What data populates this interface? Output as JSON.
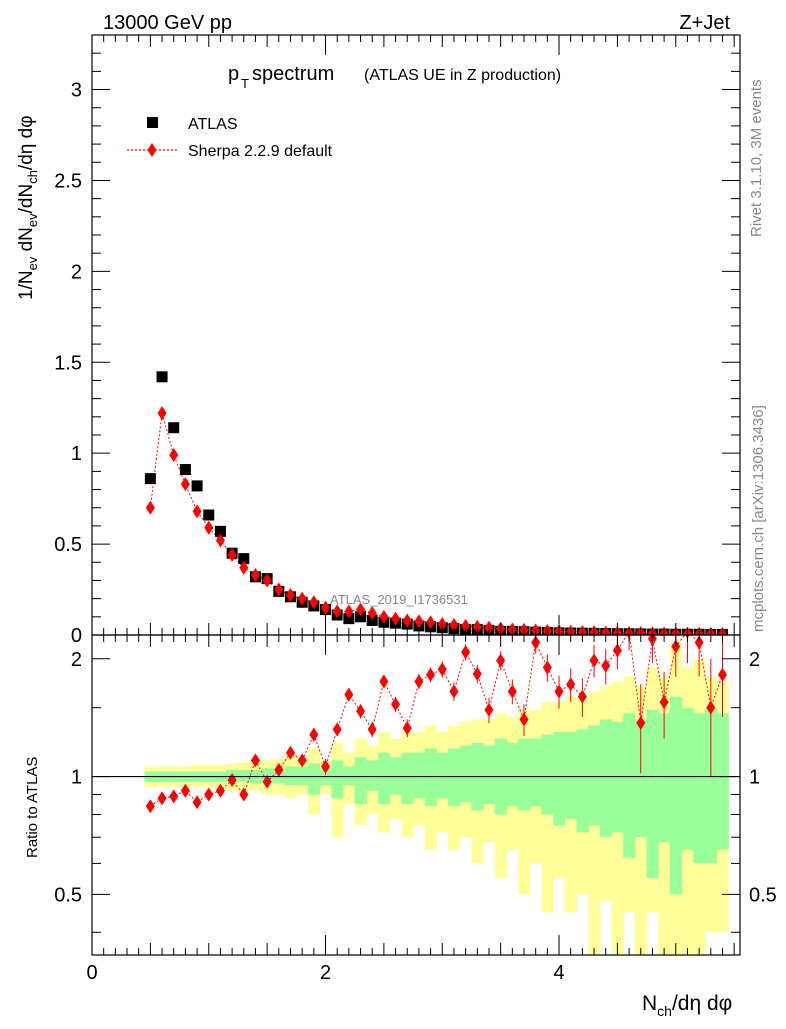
{
  "header": {
    "energy_label": "13000 GeV pp",
    "process_label": "Z+Jet"
  },
  "side": {
    "rivet_label": "Rivet 3.1.10,  3M events",
    "mcplots_label": "mcplots.cern.ch [arXiv:1306.3436]"
  },
  "colors": {
    "atlas": "#000000",
    "sherpa": "#ff0000",
    "band_inner": "#99ff99",
    "band_outer": "#ffff99"
  },
  "chart_data": {
    "type": "scatter",
    "title": {
      "main": "p",
      "sub": "T",
      "rest": " spectrum",
      "note": "(ATLAS UE in Z production)"
    },
    "watermark": "ATLAS_2019_I1736531",
    "legend": {
      "position": "top-left",
      "entries": [
        {
          "label": "ATLAS",
          "marker": "square"
        },
        {
          "label": "Sherpa 2.2.9 default",
          "marker": "diamond"
        }
      ]
    },
    "main_panel": {
      "ylabel": "1/N_ev dN_ev/dN_ch/dη dφ",
      "ylim": [
        0,
        3.3
      ],
      "yticks": [
        0,
        0.5,
        1,
        1.5,
        2,
        2.5,
        3
      ],
      "ytick_labels": [
        "0",
        "0.5",
        "1",
        "1.5",
        "2",
        "2.5",
        "3"
      ]
    },
    "ratio_panel": {
      "ylabel": "Ratio to ATLAS",
      "ylim": [
        0.35,
        2.3
      ],
      "yticks": [
        0.5,
        1,
        2
      ],
      "ytick_labels": [
        "0.5",
        "1",
        "2"
      ]
    },
    "x_axis": {
      "xlabel": "N_ch/dη dφ",
      "xlim": [
        0,
        5.55
      ],
      "xticks": [
        0,
        2,
        4
      ],
      "xtick_labels": [
        "0",
        "2",
        "4"
      ]
    },
    "bin_width": 0.1,
    "x": [
      0.5,
      0.6,
      0.7,
      0.8,
      0.9,
      1.0,
      1.1,
      1.2,
      1.3,
      1.4,
      1.5,
      1.6,
      1.7,
      1.8,
      1.9,
      2.0,
      2.1,
      2.2,
      2.3,
      2.4,
      2.5,
      2.6,
      2.7,
      2.8,
      2.9,
      3.0,
      3.1,
      3.2,
      3.3,
      3.4,
      3.5,
      3.6,
      3.7,
      3.8,
      3.9,
      4.0,
      4.1,
      4.2,
      4.3,
      4.4,
      4.5,
      4.6,
      4.7,
      4.8,
      4.9,
      5.0,
      5.1,
      5.2,
      5.3,
      5.4
    ],
    "series": [
      {
        "name": "ATLAS",
        "values": [
          0.86,
          1.42,
          1.14,
          0.91,
          0.82,
          0.66,
          0.57,
          0.45,
          0.42,
          0.32,
          0.31,
          0.24,
          0.21,
          0.18,
          0.16,
          0.14,
          0.11,
          0.09,
          0.1,
          0.08,
          0.07,
          0.065,
          0.06,
          0.05,
          0.045,
          0.04,
          0.035,
          0.03,
          0.03,
          0.025,
          0.02,
          0.02,
          0.018,
          0.016,
          0.014,
          0.012,
          0.011,
          0.01,
          0.009,
          0.008,
          0.007,
          0.007,
          0.006,
          0.005,
          0.005,
          0.004,
          0.004,
          0.004,
          0.003,
          0.003
        ]
      },
      {
        "name": "Sherpa 2.2.9 default",
        "values": [
          0.7,
          1.22,
          0.99,
          0.83,
          0.68,
          0.59,
          0.52,
          0.44,
          0.37,
          0.33,
          0.3,
          0.25,
          0.22,
          0.2,
          0.18,
          0.15,
          0.13,
          0.13,
          0.14,
          0.12,
          0.1,
          0.09,
          0.08,
          0.075,
          0.07,
          0.06,
          0.055,
          0.05,
          0.045,
          0.04,
          0.035,
          0.03,
          0.028,
          0.025,
          0.022,
          0.02,
          0.018,
          0.016,
          0.015,
          0.013,
          0.012,
          0.011,
          0.01,
          0.009,
          0.008,
          0.008,
          0.007,
          0.006,
          0.006,
          0.005
        ]
      }
    ],
    "ratio": {
      "values": [
        0.84,
        0.88,
        0.89,
        0.92,
        0.86,
        0.9,
        0.92,
        0.98,
        0.9,
        1.1,
        0.97,
        1.04,
        1.15,
        1.1,
        1.28,
        1.06,
        1.32,
        1.62,
        1.47,
        1.32,
        1.75,
        1.53,
        1.33,
        1.75,
        1.82,
        1.88,
        1.65,
        2.08,
        1.83,
        1.48,
        1.98,
        1.65,
        1.4,
        2.2,
        1.9,
        1.65,
        1.72,
        1.6,
        1.98,
        1.92,
        2.1,
        2.35,
        1.37,
        2.25,
        1.55,
        2.15,
        2.35,
        2.2,
        1.5,
        1.82
      ],
      "errors": [
        0.03,
        0.02,
        0.02,
        0.02,
        0.02,
        0.02,
        0.02,
        0.03,
        0.03,
        0.03,
        0.03,
        0.03,
        0.04,
        0.04,
        0.05,
        0.05,
        0.05,
        0.06,
        0.06,
        0.06,
        0.07,
        0.07,
        0.07,
        0.08,
        0.08,
        0.09,
        0.09,
        0.1,
        0.1,
        0.11,
        0.11,
        0.12,
        0.13,
        0.14,
        0.15,
        0.16,
        0.17,
        0.18,
        0.19,
        0.2,
        0.22,
        0.25,
        0.35,
        0.3,
        0.3,
        0.35,
        0.4,
        0.4,
        0.5,
        0.4
      ],
      "band_inner": [
        [
          0.97,
          1.03
        ],
        [
          0.97,
          1.03
        ],
        [
          0.97,
          1.03
        ],
        [
          0.97,
          1.03
        ],
        [
          0.97,
          1.03
        ],
        [
          0.97,
          1.03
        ],
        [
          0.97,
          1.03
        ],
        [
          0.97,
          1.04
        ],
        [
          0.97,
          1.04
        ],
        [
          0.96,
          1.04
        ],
        [
          0.96,
          1.05
        ],
        [
          0.96,
          1.05
        ],
        [
          0.95,
          1.06
        ],
        [
          0.95,
          1.06
        ],
        [
          0.9,
          1.08
        ],
        [
          0.95,
          1.05
        ],
        [
          0.88,
          1.1
        ],
        [
          0.95,
          1.06
        ],
        [
          0.85,
          1.12
        ],
        [
          0.92,
          1.1
        ],
        [
          0.85,
          1.15
        ],
        [
          0.9,
          1.12
        ],
        [
          0.85,
          1.15
        ],
        [
          0.88,
          1.15
        ],
        [
          0.84,
          1.18
        ],
        [
          0.88,
          1.15
        ],
        [
          0.84,
          1.18
        ],
        [
          0.86,
          1.2
        ],
        [
          0.82,
          1.22
        ],
        [
          0.85,
          1.2
        ],
        [
          0.8,
          1.25
        ],
        [
          0.84,
          1.22
        ],
        [
          0.82,
          1.25
        ],
        [
          0.84,
          1.25
        ],
        [
          0.8,
          1.28
        ],
        [
          0.75,
          1.3
        ],
        [
          0.78,
          1.3
        ],
        [
          0.72,
          1.32
        ],
        [
          0.75,
          1.35
        ],
        [
          0.7,
          1.4
        ],
        [
          0.72,
          1.38
        ],
        [
          0.62,
          1.45
        ],
        [
          0.7,
          1.4
        ],
        [
          0.55,
          1.48
        ],
        [
          0.68,
          1.45
        ],
        [
          0.5,
          1.6
        ],
        [
          0.65,
          1.5
        ],
        [
          0.6,
          1.45
        ],
        [
          0.6,
          1.5
        ],
        [
          0.65,
          1.45
        ]
      ],
      "band_outer": [
        [
          0.94,
          1.06
        ],
        [
          0.94,
          1.06
        ],
        [
          0.94,
          1.06
        ],
        [
          0.94,
          1.06
        ],
        [
          0.94,
          1.07
        ],
        [
          0.94,
          1.07
        ],
        [
          0.93,
          1.07
        ],
        [
          0.92,
          1.08
        ],
        [
          0.92,
          1.09
        ],
        [
          0.92,
          1.1
        ],
        [
          0.9,
          1.1
        ],
        [
          0.9,
          1.11
        ],
        [
          0.88,
          1.14
        ],
        [
          0.9,
          1.12
        ],
        [
          0.8,
          1.18
        ],
        [
          0.9,
          1.1
        ],
        [
          0.7,
          1.22
        ],
        [
          0.85,
          1.15
        ],
        [
          0.75,
          1.25
        ],
        [
          0.8,
          1.2
        ],
        [
          0.72,
          1.3
        ],
        [
          0.78,
          1.25
        ],
        [
          0.7,
          1.3
        ],
        [
          0.75,
          1.3
        ],
        [
          0.65,
          1.35
        ],
        [
          0.72,
          1.3
        ],
        [
          0.65,
          1.35
        ],
        [
          0.7,
          1.38
        ],
        [
          0.6,
          1.4
        ],
        [
          0.68,
          1.4
        ],
        [
          0.55,
          1.45
        ],
        [
          0.65,
          1.42
        ],
        [
          0.5,
          1.48
        ],
        [
          0.6,
          1.48
        ],
        [
          0.45,
          1.55
        ],
        [
          0.55,
          1.55
        ],
        [
          0.45,
          1.6
        ],
        [
          0.5,
          1.6
        ],
        [
          0.35,
          1.65
        ],
        [
          0.48,
          1.7
        ],
        [
          0.35,
          1.75
        ],
        [
          0.45,
          1.8
        ],
        [
          0.35,
          1.7
        ],
        [
          0.45,
          1.9
        ],
        [
          0.35,
          1.8
        ],
        [
          0.35,
          2.2
        ],
        [
          0.35,
          1.9
        ],
        [
          0.35,
          2.0
        ],
        [
          0.4,
          1.8
        ],
        [
          0.4,
          1.75
        ]
      ]
    }
  }
}
